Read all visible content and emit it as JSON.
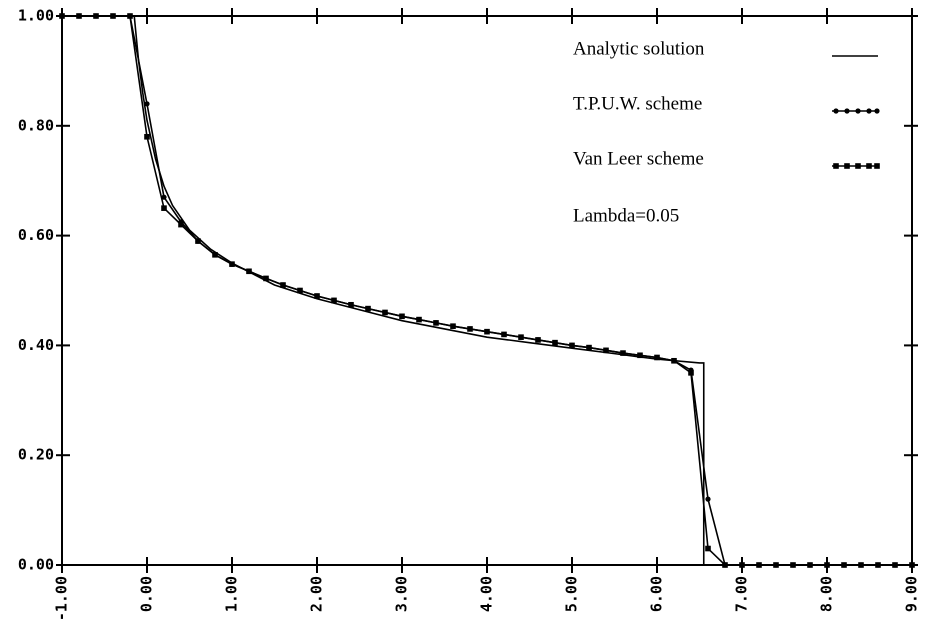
{
  "chart_data": {
    "type": "line",
    "x": [
      -1,
      -0.8,
      -0.6,
      -0.4,
      -0.2,
      0,
      0.2,
      0.4,
      0.6,
      0.8,
      1,
      1.2,
      1.4,
      1.6,
      1.8,
      2,
      2.2,
      2.4,
      2.6,
      2.8,
      3,
      3.2,
      3.4,
      3.6,
      3.8,
      4,
      4.2,
      4.4,
      4.6,
      4.8,
      5,
      5.2,
      5.4,
      5.6,
      5.8,
      6,
      6.2,
      6.4,
      6.6,
      6.8,
      7,
      7.2,
      7.4,
      7.6,
      7.8,
      8,
      8.2,
      8.4,
      8.6,
      8.8,
      9
    ],
    "series": [
      {
        "name": "Analytic solution",
        "color": "#000000",
        "marker": "none",
        "x": [
          -1,
          -0.15,
          -0.1,
          -0.05,
          0,
          0.1,
          0.2,
          0.3,
          0.5,
          0.75,
          1,
          1.5,
          2,
          2.5,
          3,
          3.5,
          4,
          4.5,
          5,
          5.5,
          6,
          6.5,
          6.55,
          6.55,
          9
        ],
        "values": [
          1,
          1,
          0.92,
          0.86,
          0.81,
          0.74,
          0.69,
          0.655,
          0.61,
          0.575,
          0.55,
          0.51,
          0.485,
          0.465,
          0.445,
          0.43,
          0.415,
          0.405,
          0.395,
          0.385,
          0.375,
          0.368,
          0.368,
          0,
          0
        ]
      },
      {
        "name": "T.P.U.W. scheme",
        "color": "#000000",
        "marker": "circle",
        "values": [
          1,
          1,
          1,
          1,
          1,
          0.84,
          0.67,
          0.625,
          0.59,
          0.565,
          0.548,
          0.535,
          0.522,
          0.51,
          0.5,
          0.49,
          0.482,
          0.474,
          0.467,
          0.46,
          0.453,
          0.447,
          0.441,
          0.435,
          0.43,
          0.425,
          0.42,
          0.415,
          0.41,
          0.405,
          0.4,
          0.396,
          0.391,
          0.386,
          0.382,
          0.378,
          0.372,
          0.355,
          0.12,
          0,
          0,
          0,
          0,
          0,
          0,
          0,
          0,
          0,
          0,
          0,
          0
        ]
      },
      {
        "name": "Van Leer scheme",
        "color": "#000000",
        "marker": "square",
        "values": [
          1,
          1,
          1,
          1,
          1,
          0.78,
          0.65,
          0.62,
          0.59,
          0.565,
          0.548,
          0.535,
          0.522,
          0.51,
          0.5,
          0.49,
          0.482,
          0.474,
          0.467,
          0.46,
          0.453,
          0.447,
          0.441,
          0.435,
          0.43,
          0.425,
          0.42,
          0.415,
          0.41,
          0.405,
          0.4,
          0.396,
          0.391,
          0.386,
          0.382,
          0.378,
          0.372,
          0.35,
          0.03,
          0,
          0,
          0,
          0,
          0,
          0,
          0,
          0,
          0,
          0,
          0,
          0
        ]
      }
    ],
    "annotation": "Lambda=0.05",
    "xlim": [
      -1,
      9
    ],
    "ylim": [
      0,
      1
    ],
    "xticks": [
      {
        "value": -1,
        "label": "-1.00"
      },
      {
        "value": 0,
        "label": "0.00"
      },
      {
        "value": 1,
        "label": "1.00"
      },
      {
        "value": 2,
        "label": "2.00"
      },
      {
        "value": 3,
        "label": "3.00"
      },
      {
        "value": 4,
        "label": "4.00"
      },
      {
        "value": 5,
        "label": "5.00"
      },
      {
        "value": 6,
        "label": "6.00"
      },
      {
        "value": 7,
        "label": "7.00"
      },
      {
        "value": 8,
        "label": "8.00"
      },
      {
        "value": 9,
        "label": "9.00"
      }
    ],
    "yticks": [
      {
        "value": 0,
        "label": "0.00"
      },
      {
        "value": 0.2,
        "label": "0.20"
      },
      {
        "value": 0.4,
        "label": "0.40"
      },
      {
        "value": 0.6,
        "label": "0.60"
      },
      {
        "value": 0.8,
        "label": "0.80"
      },
      {
        "value": 1,
        "label": "1.00"
      }
    ],
    "grid": false,
    "legend": "top-right"
  }
}
